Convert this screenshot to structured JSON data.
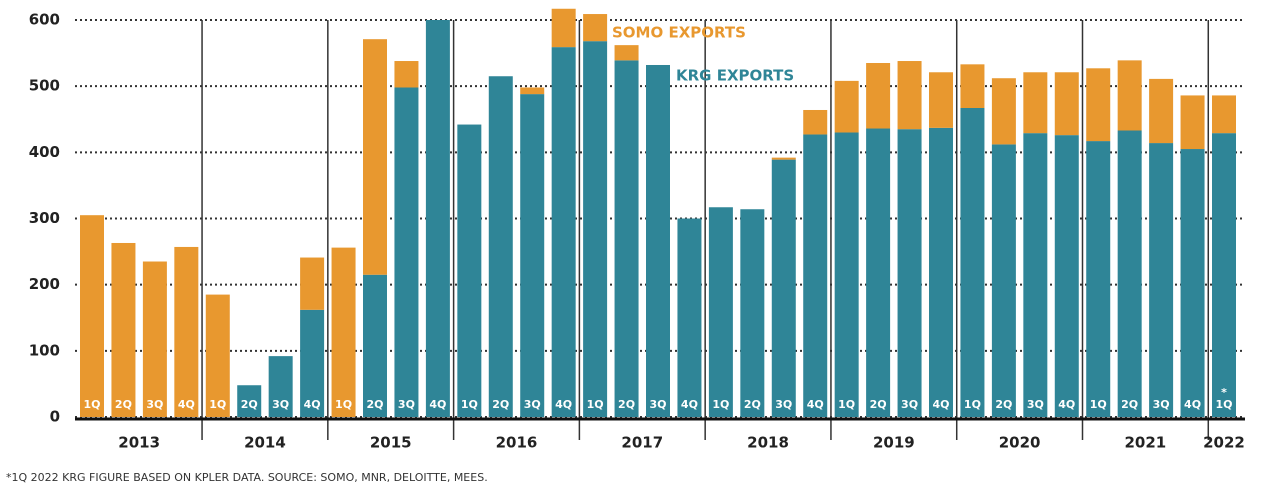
{
  "chart_data": {
    "type": "stacked_bar",
    "categories": [
      "1Q",
      "2Q",
      "3Q",
      "4Q",
      "1Q",
      "2Q",
      "3Q",
      "4Q",
      "1Q",
      "2Q",
      "3Q",
      "4Q",
      "1Q",
      "2Q",
      "3Q",
      "4Q",
      "1Q",
      "2Q",
      "3Q",
      "4Q",
      "1Q",
      "2Q",
      "3Q",
      "4Q",
      "1Q",
      "2Q",
      "3Q",
      "4Q",
      "1Q",
      "2Q",
      "3Q",
      "4Q",
      "1Q",
      "2Q",
      "3Q",
      "4Q",
      "1Q"
    ],
    "years": [
      "2013",
      "2014",
      "2015",
      "2016",
      "2017",
      "2018",
      "2019",
      "2020",
      "2021",
      "2022"
    ],
    "series": [
      {
        "name": "KRG EXPORTS",
        "color": "#2f8597",
        "values": [
          0,
          0,
          0,
          0,
          0,
          48,
          92,
          162,
          0,
          215,
          498,
          600,
          442,
          515,
          488,
          559,
          568,
          539,
          532,
          300,
          317,
          314,
          389,
          427,
          430,
          436,
          435,
          437,
          467,
          412,
          429,
          426,
          417,
          433,
          414,
          405,
          429
        ]
      },
      {
        "name": "SOMO EXPORTS",
        "color": "#e8982f",
        "values": [
          305,
          263,
          235,
          257,
          185,
          0,
          0,
          79,
          256,
          356,
          40,
          0,
          0,
          0,
          10,
          58,
          41,
          23,
          0,
          0,
          0,
          0,
          3,
          37,
          78,
          99,
          103,
          84,
          66,
          100,
          92,
          95,
          110,
          106,
          97,
          81,
          57
        ]
      }
    ],
    "ylim": [
      0,
      600
    ],
    "yticks": [
      0,
      100,
      200,
      300,
      400,
      500,
      600
    ],
    "grid": true,
    "annotation": "*",
    "footnote": "*1Q 2022 KRG FIGURE BASED ON KPLER DATA. SOURCE: SOMO, MNR, DELOITTE, MEES."
  }
}
